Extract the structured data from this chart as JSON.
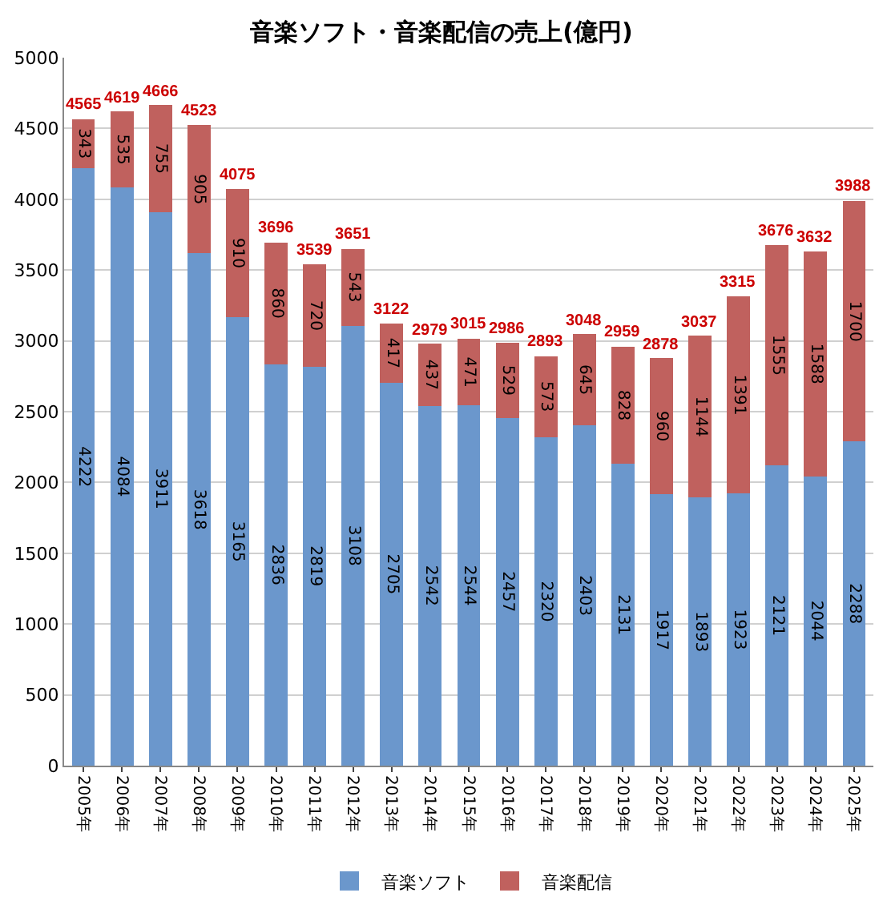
{
  "chart_data": {
    "type": "bar",
    "title": "音楽ソフト・音楽配信の売上(億円)",
    "stacked": true,
    "categories": [
      "2005年",
      "2006年",
      "2007年",
      "2008年",
      "2009年",
      "2010年",
      "2011年",
      "2012年",
      "2013年",
      "2014年",
      "2015年",
      "2016年",
      "2017年",
      "2018年",
      "2019年",
      "2020年",
      "2021年",
      "2022年",
      "2023年",
      "2024年",
      "2025年"
    ],
    "series": [
      {
        "name": "音楽ソフト",
        "color": "#6b97cc",
        "values": [
          4222,
          4084,
          3911,
          3618,
          3165,
          2836,
          2819,
          3108,
          2705,
          2542,
          2544,
          2457,
          2320,
          2403,
          2131,
          1917,
          1893,
          1923,
          2121,
          2044,
          2288
        ]
      },
      {
        "name": "音楽配信",
        "color": "#c0615e",
        "values": [
          343,
          535,
          755,
          905,
          910,
          860,
          720,
          543,
          417,
          437,
          471,
          529,
          573,
          645,
          828,
          960,
          1144,
          1391,
          1555,
          1588,
          1700
        ]
      }
    ],
    "totals": [
      "4565",
      "4619",
      "4666",
      "4523",
      "4075",
      "3696",
      "3539",
      "3651",
      "3122",
      "2979",
      "3015",
      "2986",
      "2893",
      "3048",
      "2959",
      "2878",
      "3037",
      "3315",
      "3676",
      "3632",
      "3988"
    ],
    "data_labels": true,
    "ylim": [
      0,
      5000
    ],
    "yticks": [
      0,
      500,
      1000,
      1500,
      2000,
      2500,
      3000,
      3500,
      4000,
      4500,
      5000
    ],
    "grid": "y",
    "legend": "bottom"
  }
}
